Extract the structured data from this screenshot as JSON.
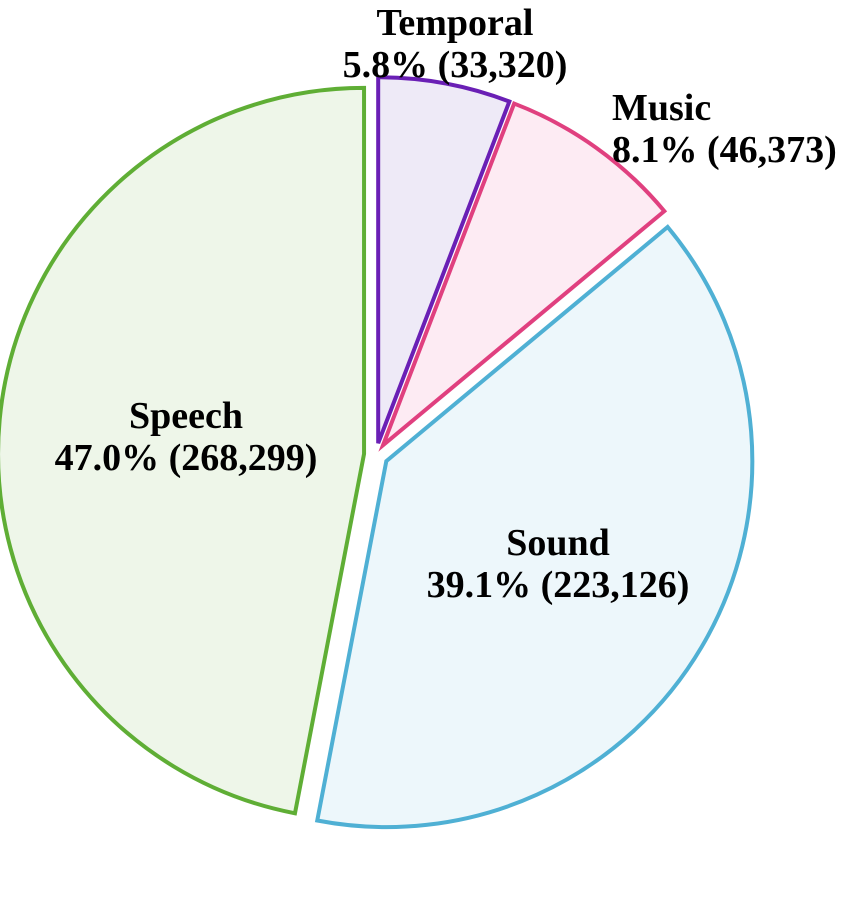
{
  "chart_data": {
    "type": "pie",
    "title": "",
    "legend": "none",
    "slices": [
      {
        "name": "Temporal",
        "percent": 5.8,
        "percent_label": "5.8%",
        "count": 33320,
        "count_label": "(33,320)",
        "stroke": "#6a1fb5",
        "fill": "#eeeaf7"
      },
      {
        "name": "Music",
        "percent": 8.1,
        "percent_label": "8.1%",
        "count": 46373,
        "count_label": "(46,373)",
        "stroke": "#e0407f",
        "fill": "#fdebf3"
      },
      {
        "name": "Sound",
        "percent": 39.1,
        "percent_label": "39.1%",
        "count": 223126,
        "count_label": "(223,126)",
        "stroke": "#4fb0d4",
        "fill": "#edf7fb"
      },
      {
        "name": "Speech",
        "percent": 47.0,
        "percent_label": "47.0%",
        "count": 268299,
        "count_label": "(268,299)",
        "stroke": "#5fae35",
        "fill": "#eef6e9"
      }
    ]
  }
}
